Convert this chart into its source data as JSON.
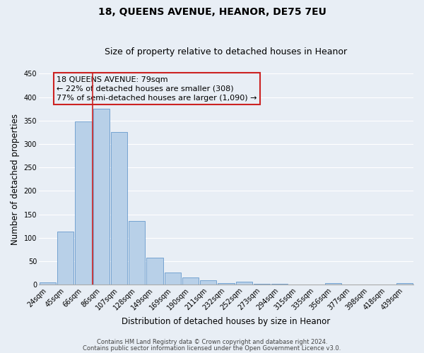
{
  "title": "18, QUEENS AVENUE, HEANOR, DE75 7EU",
  "subtitle": "Size of property relative to detached houses in Heanor",
  "xlabel": "Distribution of detached houses by size in Heanor",
  "ylabel": "Number of detached properties",
  "categories": [
    "24sqm",
    "45sqm",
    "66sqm",
    "86sqm",
    "107sqm",
    "128sqm",
    "149sqm",
    "169sqm",
    "190sqm",
    "211sqm",
    "232sqm",
    "252sqm",
    "273sqm",
    "294sqm",
    "315sqm",
    "335sqm",
    "356sqm",
    "377sqm",
    "398sqm",
    "418sqm",
    "439sqm"
  ],
  "values": [
    5,
    113,
    348,
    375,
    325,
    136,
    57,
    26,
    15,
    9,
    4,
    7,
    2,
    2,
    0,
    0,
    3,
    0,
    0,
    0,
    3
  ],
  "bar_color": "#b8d0e8",
  "bar_edge_color": "#6699cc",
  "vline_x_idx": 2.5,
  "vline_color": "#cc2222",
  "annotation_line1": "18 QUEENS AVENUE: 79sqm",
  "annotation_line2": "← 22% of detached houses are smaller (308)",
  "annotation_line3": "77% of semi-detached houses are larger (1,090) →",
  "annotation_box_edge_color": "#cc2222",
  "ylim": [
    0,
    450
  ],
  "yticks": [
    0,
    50,
    100,
    150,
    200,
    250,
    300,
    350,
    400,
    450
  ],
  "footer_line1": "Contains HM Land Registry data © Crown copyright and database right 2024.",
  "footer_line2": "Contains public sector information licensed under the Open Government Licence v3.0.",
  "background_color": "#e8eef5",
  "plot_background_color": "#e8eef5",
  "grid_color": "#ffffff",
  "title_fontsize": 10,
  "subtitle_fontsize": 9,
  "axis_label_fontsize": 8.5,
  "tick_fontsize": 7,
  "annotation_fontsize": 8,
  "footer_fontsize": 6
}
